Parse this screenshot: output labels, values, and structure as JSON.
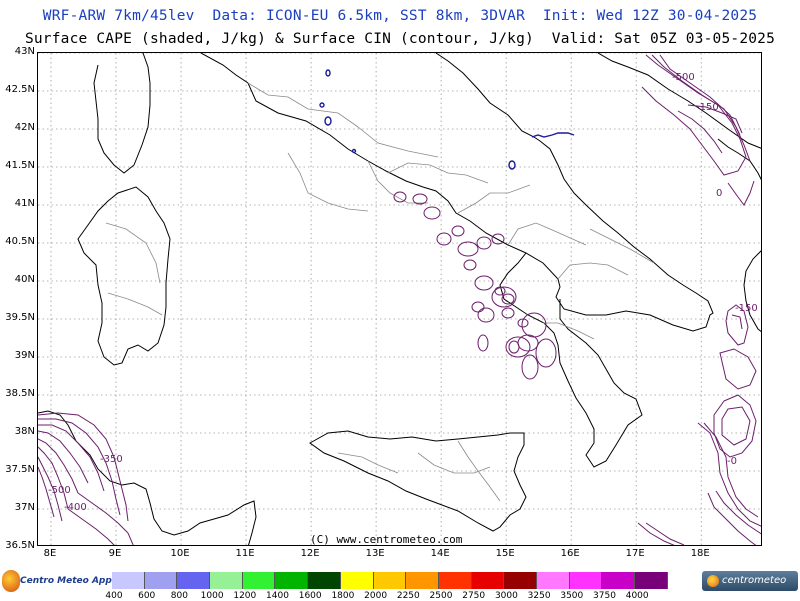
{
  "header": {
    "line1": "WRF-ARW 7km/45lev  Data: ICON-EU 6.5km, SST 8km, 3DVAR  Init: Wed 12Z 30-04-2025",
    "line2": "Surface CAPE (shaded, J/kg) & Surface CIN (contour, J/kg)  Valid: Sat 05Z 03-05-2025"
  },
  "axes": {
    "lat_labels": [
      "43N",
      "42.5N",
      "42N",
      "41.5N",
      "41N",
      "40.5N",
      "40N",
      "39.5N",
      "39N",
      "38.5N",
      "38N",
      "37.5N",
      "37N",
      "36.5N"
    ],
    "lon_labels": [
      "8E",
      "9E",
      "10E",
      "11E",
      "12E",
      "13E",
      "14E",
      "15E",
      "16E",
      "17E",
      "18E"
    ],
    "lat_values": [
      43,
      42.5,
      42,
      41.5,
      41,
      40.5,
      40,
      39.5,
      39,
      38.5,
      38,
      37.5,
      37,
      36.5
    ],
    "lon_values": [
      8,
      9,
      10,
      11,
      12,
      13,
      14,
      15,
      16,
      17,
      18
    ]
  },
  "copyright": "(C) www.centrometeo.com",
  "cin_labels": [
    {
      "text": "-500"
    },
    {
      "text": "-150"
    },
    {
      "text": "-150"
    },
    {
      "text": "-350"
    },
    {
      "text": "-500"
    },
    {
      "text": "-400"
    },
    {
      "text": "-0"
    },
    {
      "text": "0"
    }
  ],
  "legend": {
    "colors": [
      "#c8c8ff",
      "#a0a0f0",
      "#6464f0",
      "#96f096",
      "#32f032",
      "#00b400",
      "#004600",
      "#ffff00",
      "#ffc800",
      "#ff9600",
      "#ff3200",
      "#e60000",
      "#960000",
      "#ff78ff",
      "#ff32ff",
      "#c800c8",
      "#780078"
    ],
    "labels": [
      "400",
      "600",
      "800",
      "1000",
      "1200",
      "1400",
      "1600",
      "1800",
      "2000",
      "2250",
      "2500",
      "2750",
      "3000",
      "3250",
      "3500",
      "3750",
      "4000"
    ]
  },
  "logos": {
    "left_text": "Centro Meteo Appennini",
    "right_text": "centrometeo"
  }
}
